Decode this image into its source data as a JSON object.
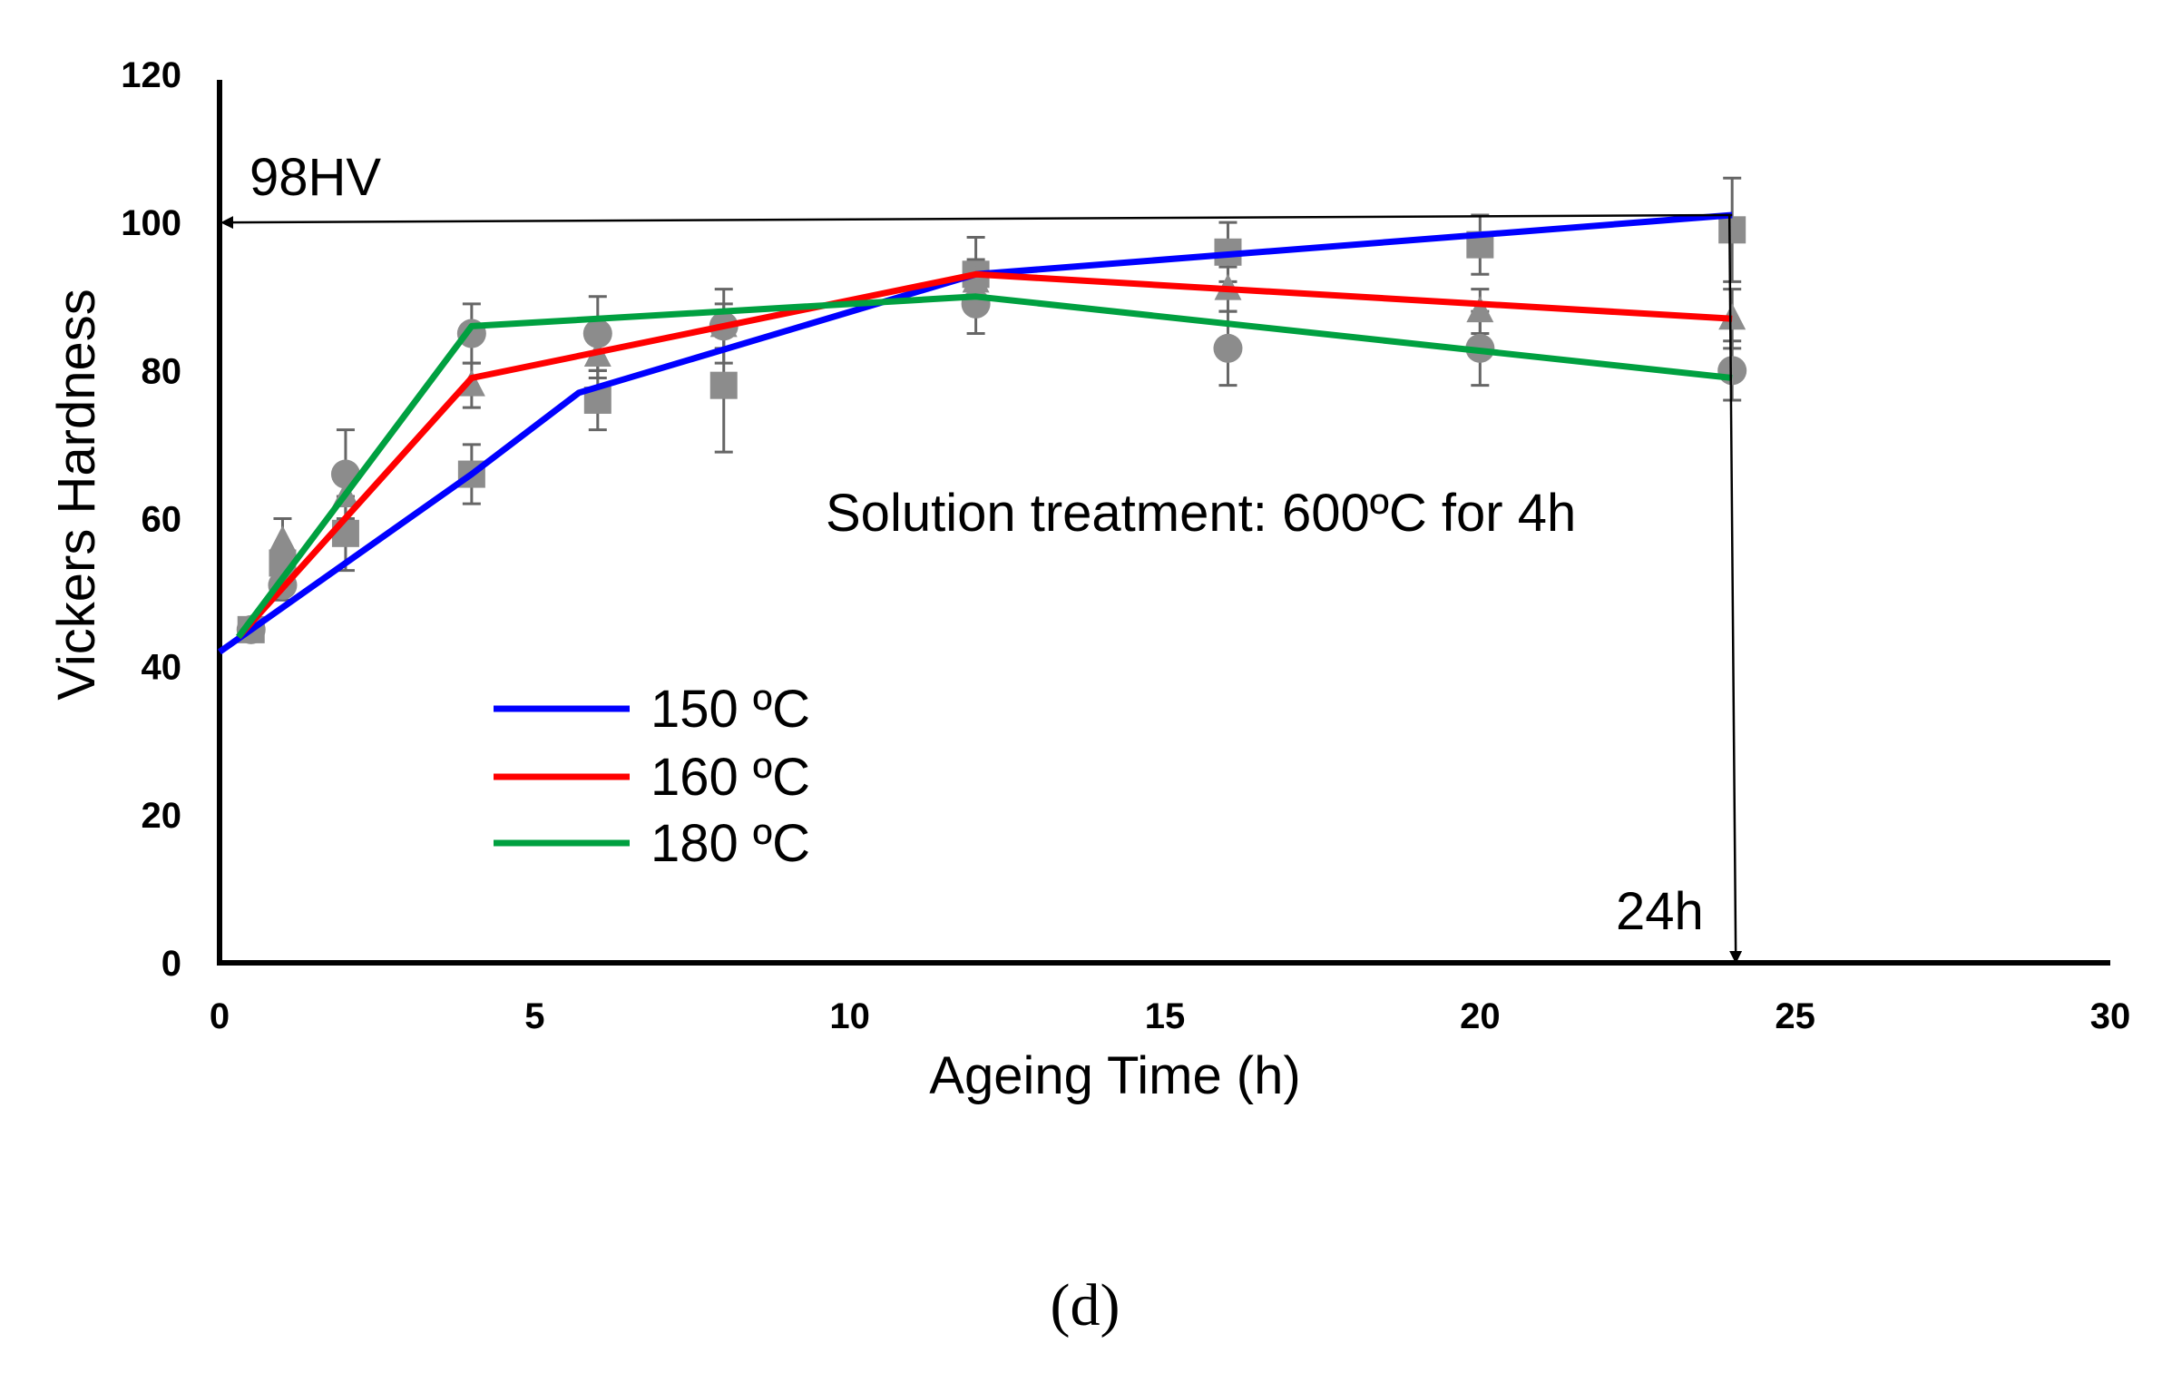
{
  "chart_data": {
    "type": "line",
    "title": "",
    "xlabel": "Ageing Time (h)",
    "ylabel": "Vickers Hardness",
    "xlim": [
      0,
      30
    ],
    "ylim": [
      0,
      120
    ],
    "xticks": [
      "0",
      "5",
      "10",
      "15",
      "20",
      "25",
      "30"
    ],
    "yticks": [
      "0",
      "20",
      "40",
      "60",
      "80",
      "100",
      "120"
    ],
    "series": [
      {
        "name": "150 ºC",
        "color": "#0000ff",
        "x": [
          0,
          4,
          5.7,
          12,
          24
        ],
        "y": [
          42,
          66,
          77,
          93,
          101
        ]
      },
      {
        "name": "160 ºC",
        "color": "#ff0000",
        "x": [
          0.3,
          4,
          12,
          24
        ],
        "y": [
          44,
          79,
          93,
          87
        ]
      },
      {
        "name": "180 ºC",
        "color": "#00a040",
        "x": [
          0.3,
          4,
          12,
          24
        ],
        "y": [
          44,
          86,
          90,
          79
        ]
      }
    ],
    "markers": [
      {
        "shape": "square",
        "x": [
          0.5,
          1,
          2,
          4,
          6,
          8,
          12,
          16,
          20,
          24
        ],
        "y": [
          45,
          54,
          58,
          66,
          76,
          78,
          93,
          96,
          97,
          99
        ],
        "err": [
          1,
          2,
          5,
          4,
          4,
          9,
          5,
          4,
          4,
          7
        ]
      },
      {
        "shape": "triangle",
        "x": [
          0.5,
          1,
          2,
          4,
          6,
          8,
          12,
          16,
          20,
          24
        ],
        "y": [
          45,
          57,
          63,
          78,
          82,
          86,
          92,
          91,
          88,
          87
        ],
        "err": [
          1,
          3,
          4,
          3,
          3,
          3,
          3,
          3,
          3,
          4
        ]
      },
      {
        "shape": "circle",
        "x": [
          0.5,
          1,
          2,
          4,
          6,
          8,
          12,
          16,
          20,
          24
        ],
        "y": [
          45,
          51,
          66,
          85,
          85,
          86,
          89,
          83,
          83,
          80
        ],
        "err": [
          1,
          2,
          6,
          4,
          5,
          5,
          4,
          5,
          5,
          4
        ]
      }
    ],
    "annotations": {
      "ref_label": "98HV",
      "ref_y": 100,
      "time_label": "24h",
      "time_x": 24,
      "note": "Solution treatment: 600ºC for 4h"
    },
    "legend_position": "lower-left",
    "grid": false
  },
  "panel_label": "(d)"
}
